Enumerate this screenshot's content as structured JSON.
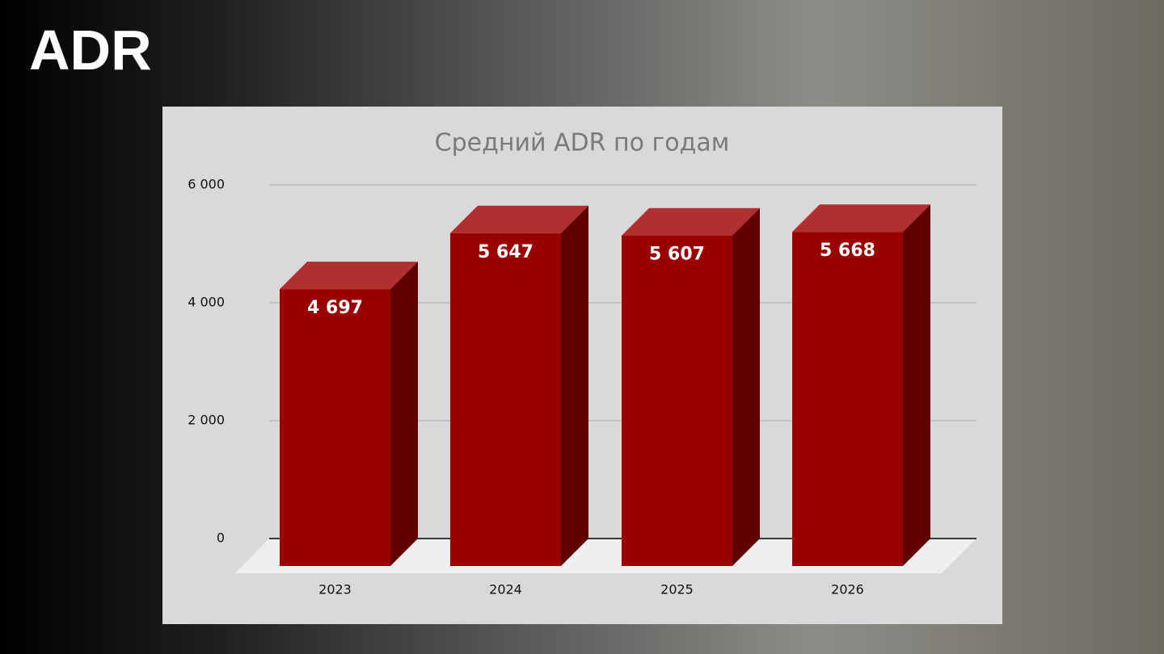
{
  "header": {
    "title": "ADR"
  },
  "chart_data": {
    "type": "bar3d",
    "title": "Средний ADR по годам",
    "categories": [
      "2023",
      "2024",
      "2025",
      "2026"
    ],
    "values": [
      4697,
      5647,
      5607,
      5668
    ],
    "value_labels": [
      "4 697",
      "5 647",
      "5 607",
      "5 668"
    ],
    "color": "#9b0000",
    "ylim": [
      0,
      6000
    ],
    "yticks": [
      0,
      {
        "value": 2000,
        "label": "2 000"
      },
      {
        "value": 4000,
        "label": "4 000"
      },
      {
        "value": 6000,
        "label": "6 000"
      }
    ],
    "grid": true
  }
}
